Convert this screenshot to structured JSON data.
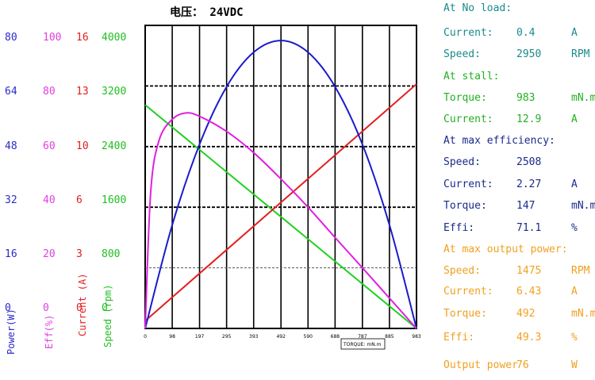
{
  "chart_data": {
    "type": "line",
    "title": "电压： 24VDC",
    "xlabel": "TORQUE: mN.m",
    "x_ticks": [
      "0",
      "98",
      "197",
      "295",
      "393",
      "492",
      "590",
      "688",
      "787",
      "885",
      "983"
    ],
    "xlim": [
      0,
      983
    ],
    "axes": [
      {
        "name": "power",
        "label": "Power(W)",
        "color": "#2b2bc8",
        "ticks": [
          "80",
          "64",
          "48",
          "32",
          "16",
          "0"
        ],
        "range": [
          0,
          80
        ]
      },
      {
        "name": "eff",
        "label": "Eff(%)",
        "color": "#e040e0",
        "ticks": [
          "100",
          "80",
          "60",
          "40",
          "20",
          "0"
        ],
        "range": [
          0,
          100
        ]
      },
      {
        "name": "current",
        "label": "Current (A)",
        "color": "#e02020",
        "ticks": [
          "16",
          "13",
          "10",
          "6",
          "3",
          "0"
        ],
        "range": [
          0,
          16
        ]
      },
      {
        "name": "speed",
        "label": "Speed (rpm)",
        "color": "#1fbf1f",
        "ticks": [
          "4000",
          "3200",
          "2400",
          "1600",
          "800",
          "0"
        ],
        "range": [
          0,
          4000
        ]
      }
    ],
    "series": [
      {
        "name": "Speed",
        "axis": "speed",
        "color": "#1fd01f",
        "points": [
          [
            0,
            2950
          ],
          [
            983,
            0
          ]
        ]
      },
      {
        "name": "Current",
        "axis": "current",
        "color": "#e02020",
        "points": [
          [
            0,
            0.4
          ],
          [
            983,
            12.9
          ]
        ]
      },
      {
        "name": "Power",
        "axis": "power",
        "color": "#1a1acc",
        "points": [
          [
            0,
            0
          ],
          [
            98,
            27.3
          ],
          [
            197,
            48.6
          ],
          [
            295,
            63.8
          ],
          [
            393,
            72.9
          ],
          [
            492,
            76
          ],
          [
            590,
            72.9
          ],
          [
            688,
            63.8
          ],
          [
            787,
            48.6
          ],
          [
            885,
            27.3
          ],
          [
            983,
            0
          ]
        ]
      },
      {
        "name": "Efficiency",
        "axis": "eff",
        "color": "#e020e0",
        "points": [
          [
            0,
            0
          ],
          [
            20,
            45
          ],
          [
            50,
            62
          ],
          [
            98,
            69
          ],
          [
            147,
            71.1
          ],
          [
            197,
            70
          ],
          [
            295,
            65
          ],
          [
            393,
            58
          ],
          [
            492,
            49.3
          ],
          [
            590,
            40
          ],
          [
            688,
            30
          ],
          [
            787,
            20
          ],
          [
            885,
            10
          ],
          [
            983,
            0
          ]
        ]
      }
    ],
    "hlines": [
      {
        "axis": "speed",
        "value": 3200,
        "style": "dashed"
      },
      {
        "axis": "speed",
        "value": 2400,
        "style": "dashed"
      },
      {
        "axis": "speed",
        "value": 1600,
        "style": "dashed"
      },
      {
        "axis": "speed",
        "value": 800,
        "style": "dashed-light"
      }
    ],
    "grid": true
  },
  "specs": [
    {
      "label": "At No load:",
      "value": "",
      "unit": "",
      "color": "#1a8a8a"
    },
    {
      "label": "Current:",
      "value": "0.4",
      "unit": "A",
      "color": "#1a8a8a"
    },
    {
      "label": "Speed:",
      "value": "2950",
      "unit": "RPM",
      "color": "#1a8a8a"
    },
    {
      "label": "At stall:",
      "value": "",
      "unit": "",
      "color": "#22b022"
    },
    {
      "label": "Torque:",
      "value": "983",
      "unit": "mN.m",
      "color": "#22b022"
    },
    {
      "label": "Current:",
      "value": "12.9",
      "unit": "A",
      "color": "#22b022"
    },
    {
      "label": "At max efficiency:",
      "value": "",
      "unit": "",
      "color": "#1a2a8a"
    },
    {
      "label": "Speed:",
      "value": "2508",
      "unit": "",
      "color": "#1a2a8a"
    },
    {
      "label": "Current:",
      "value": "2.27",
      "unit": "A",
      "color": "#1a2a8a"
    },
    {
      "label": "Torque:",
      "value": "147",
      "unit": "mN.m",
      "color": "#1a2a8a"
    },
    {
      "label": "Effi:",
      "value": "71.1",
      "unit": "%",
      "color": "#1a2a8a"
    },
    {
      "label": "At max output power:",
      "value": "",
      "unit": "",
      "color": "#f0a020"
    },
    {
      "label": "Speed:",
      "value": "1475",
      "unit": "RPM",
      "color": "#f0a020"
    },
    {
      "label": "Current:",
      "value": "6.43",
      "unit": "A",
      "color": "#f0a020"
    },
    {
      "label": "Torque:",
      "value": "492",
      "unit": "mN.m",
      "color": "#f0a020"
    },
    {
      "label": "Effi:",
      "value": "49.3",
      "unit": "%",
      "color": "#f0a020"
    },
    {
      "label": "Output power",
      "value": "76",
      "unit": "W",
      "color": "#f0a020"
    }
  ]
}
